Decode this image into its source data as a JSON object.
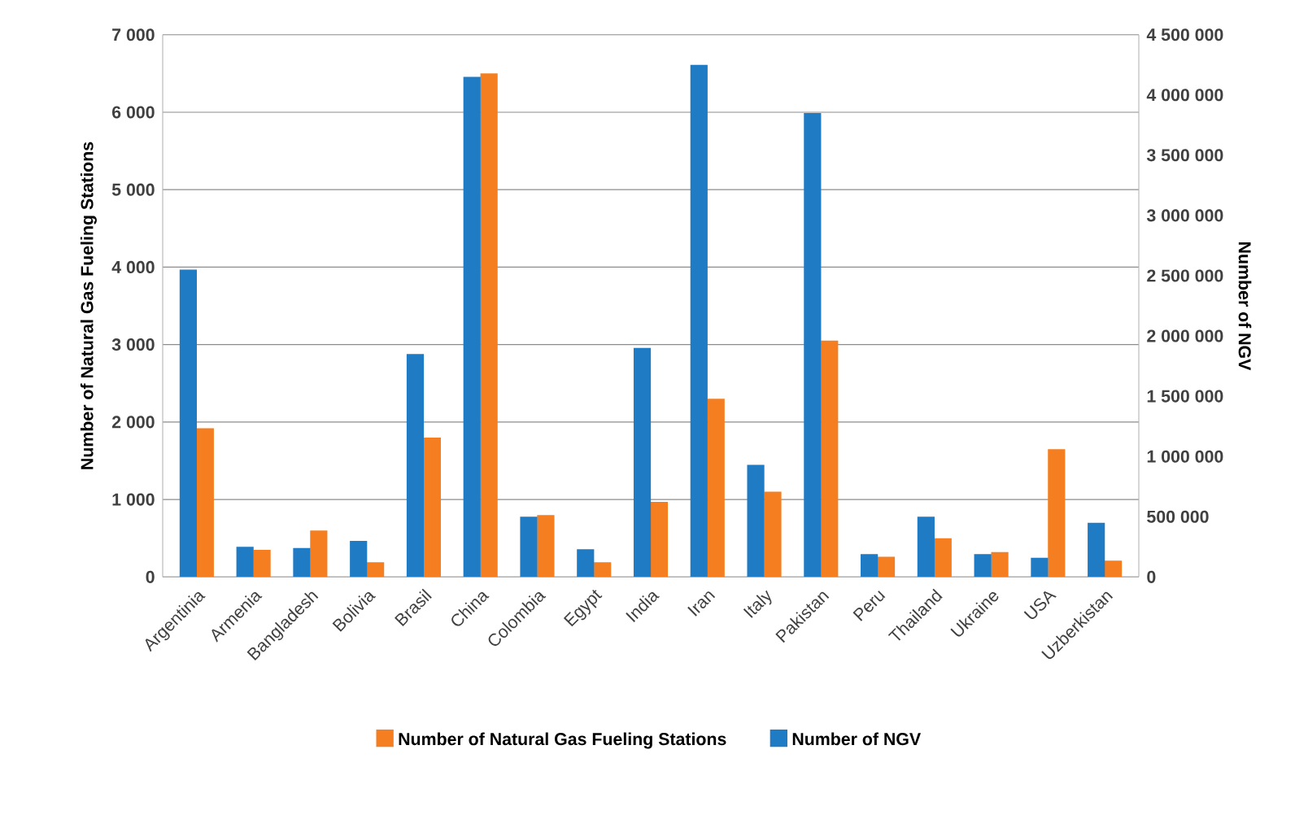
{
  "chart_data": {
    "type": "bar",
    "ylabel": "Number of Natural Gas Fueling Stations",
    "y2label": "Number of NGV",
    "categories": [
      "Argentinia",
      "Armenia",
      "Bangladesh",
      "Bolivia",
      "Brasil",
      "China",
      "Colombia",
      "Egypt",
      "India",
      "Iran",
      "Italy",
      "Pakistan",
      "Peru",
      "Thailand",
      "Ukraine",
      "USA",
      "Uzberkistan"
    ],
    "series": [
      {
        "name": "Number of Natural Gas Fueling Stations",
        "color": "#f47e20",
        "values": [
          1920,
          350,
          600,
          190,
          1800,
          6500,
          800,
          190,
          970,
          2300,
          1100,
          3050,
          260,
          500,
          320,
          1650,
          210
        ]
      },
      {
        "name": "Number of NGV",
        "color": "#1f7bc4",
        "axis": "y2",
        "values": [
          2550000,
          250000,
          240000,
          300000,
          1850000,
          4150000,
          500000,
          230000,
          1900000,
          4250000,
          930000,
          3850000,
          190000,
          500000,
          190000,
          160000,
          450000
        ]
      }
    ],
    "ylim": [
      0,
      7000
    ],
    "yticks": [
      0,
      {
        "value": 1000,
        "label": "1 000"
      },
      {
        "value": 2000,
        "label": "2 000"
      },
      {
        "value": 3000,
        "label": "3 000"
      },
      {
        "value": 4000,
        "label": "4 000"
      },
      {
        "value": 5000,
        "label": "5 000"
      },
      {
        "value": 6000,
        "label": "6 000"
      },
      {
        "value": 7000,
        "label": "7 000"
      }
    ],
    "y2lim": [
      0,
      4500000
    ],
    "y2ticks": [
      0,
      {
        "value": 500000,
        "label": "500 000"
      },
      {
        "value": 1000000,
        "label": "1 000 000"
      },
      {
        "value": 1500000,
        "label": "1 500 000"
      },
      {
        "value": 2000000,
        "label": "2 000 000"
      },
      {
        "value": 2500000,
        "label": "2 500 000"
      },
      {
        "value": 3000000,
        "label": "3 000 000"
      },
      {
        "value": 3500000,
        "label": "3 500 000"
      },
      {
        "value": 4000000,
        "label": "4 000 000"
      },
      {
        "value": 4500000,
        "label": "4 500 000"
      }
    ],
    "grid": "y",
    "legend": "bottom"
  }
}
